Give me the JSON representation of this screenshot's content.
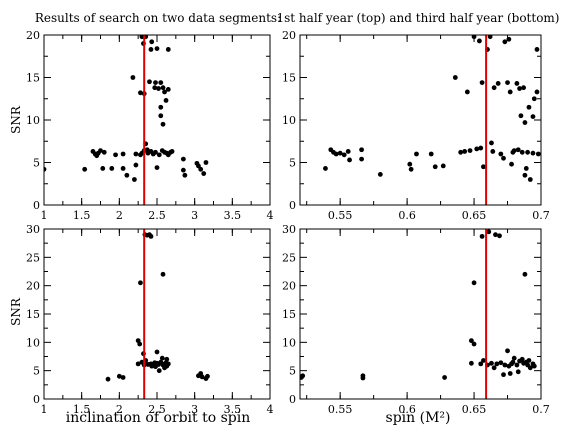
{
  "chart_data": [
    {
      "type": "scatter",
      "title": "Results of search on two data segments:",
      "xlabel": "",
      "ylabel": "SNR",
      "xlim": [
        1,
        4
      ],
      "ylim": [
        0,
        20
      ],
      "xticks": [
        "1",
        "1.5",
        "2",
        "2.5",
        "3",
        "3.5",
        "4"
      ],
      "yticks": [
        "0",
        "5",
        "10",
        "15",
        "20"
      ],
      "xtick_values": [
        1,
        1.5,
        2,
        2.5,
        3,
        3.5,
        4
      ],
      "ytick_values": [
        0,
        5,
        10,
        15,
        20
      ],
      "vline": 2.33,
      "vline_color": "#e00000",
      "points": [
        [
          1.0,
          4.2
        ],
        [
          1.54,
          4.2
        ],
        [
          1.65,
          6.3
        ],
        [
          1.68,
          6.0
        ],
        [
          1.7,
          5.8
        ],
        [
          1.72,
          6.1
        ],
        [
          1.75,
          6.4
        ],
        [
          1.78,
          4.3
        ],
        [
          1.8,
          6.2
        ],
        [
          1.9,
          4.3
        ],
        [
          1.95,
          5.9
        ],
        [
          2.05,
          6.0
        ],
        [
          2.05,
          4.3
        ],
        [
          2.1,
          3.5
        ],
        [
          2.18,
          15.0
        ],
        [
          2.2,
          3.0
        ],
        [
          2.22,
          4.7
        ],
        [
          2.22,
          6.0
        ],
        [
          2.28,
          13.2
        ],
        [
          2.28,
          5.9
        ],
        [
          2.3,
          19.8
        ],
        [
          2.3,
          6.1
        ],
        [
          2.32,
          19.0
        ],
        [
          2.33,
          13.1
        ],
        [
          2.33,
          6.4
        ],
        [
          2.35,
          19.8
        ],
        [
          2.35,
          7.2
        ],
        [
          2.37,
          6.5
        ],
        [
          2.38,
          6.1
        ],
        [
          2.4,
          14.5
        ],
        [
          2.42,
          18.3
        ],
        [
          2.42,
          6.3
        ],
        [
          2.43,
          19.2
        ],
        [
          2.45,
          6.0
        ],
        [
          2.47,
          13.8
        ],
        [
          2.48,
          14.4
        ],
        [
          2.48,
          6.2
        ],
        [
          2.5,
          18.4
        ],
        [
          2.5,
          4.4
        ],
        [
          2.52,
          13.7
        ],
        [
          2.53,
          5.9
        ],
        [
          2.55,
          14.4
        ],
        [
          2.55,
          11.5
        ],
        [
          2.55,
          10.5
        ],
        [
          2.57,
          6.4
        ],
        [
          2.58,
          13.8
        ],
        [
          2.58,
          9.5
        ],
        [
          2.6,
          6.2
        ],
        [
          2.6,
          13.3
        ],
        [
          2.62,
          12.3
        ],
        [
          2.63,
          6.1
        ],
        [
          2.65,
          18.3
        ],
        [
          2.65,
          13.6
        ],
        [
          2.65,
          5.9
        ],
        [
          2.68,
          6.2
        ],
        [
          2.7,
          6.3
        ],
        [
          2.85,
          5.4
        ],
        [
          2.85,
          4.1
        ],
        [
          2.87,
          3.5
        ],
        [
          3.03,
          4.9
        ],
        [
          3.05,
          4.6
        ],
        [
          3.08,
          4.2
        ],
        [
          3.12,
          3.7
        ],
        [
          3.15,
          5.0
        ]
      ]
    },
    {
      "type": "scatter",
      "title": "1st half year (top) and third half year (bottom)",
      "xlabel": "",
      "ylabel": "",
      "xlim": [
        0.52,
        0.7
      ],
      "ylim": [
        0,
        20
      ],
      "xticks": [
        "0.55",
        "0.6",
        "0.65",
        "0.7"
      ],
      "yticks": [
        "0",
        "5",
        "10",
        "15",
        "20"
      ],
      "xtick_values": [
        0.55,
        0.6,
        0.65,
        0.7
      ],
      "ytick_values": [
        0,
        5,
        10,
        15,
        20
      ],
      "vline": 0.659,
      "vline_color": "#e00000",
      "points": [
        [
          0.539,
          4.3
        ],
        [
          0.543,
          6.5
        ],
        [
          0.545,
          6.2
        ],
        [
          0.547,
          6.0
        ],
        [
          0.55,
          6.1
        ],
        [
          0.553,
          5.9
        ],
        [
          0.556,
          6.3
        ],
        [
          0.557,
          5.3
        ],
        [
          0.566,
          6.5
        ],
        [
          0.566,
          5.4
        ],
        [
          0.58,
          3.6
        ],
        [
          0.602,
          4.8
        ],
        [
          0.603,
          4.2
        ],
        [
          0.607,
          6.0
        ],
        [
          0.618,
          6.0
        ],
        [
          0.621,
          4.5
        ],
        [
          0.627,
          4.6
        ],
        [
          0.636,
          15.0
        ],
        [
          0.64,
          6.2
        ],
        [
          0.643,
          6.3
        ],
        [
          0.645,
          13.3
        ],
        [
          0.647,
          6.4
        ],
        [
          0.65,
          19.8
        ],
        [
          0.652,
          6.6
        ],
        [
          0.654,
          19.3
        ],
        [
          0.655,
          6.7
        ],
        [
          0.656,
          14.4
        ],
        [
          0.657,
          4.5
        ],
        [
          0.66,
          18.3
        ],
        [
          0.662,
          19.8
        ],
        [
          0.663,
          7.3
        ],
        [
          0.664,
          6.3
        ],
        [
          0.665,
          13.8
        ],
        [
          0.668,
          14.3
        ],
        [
          0.67,
          6.0
        ],
        [
          0.672,
          5.5
        ],
        [
          0.673,
          19.2
        ],
        [
          0.675,
          14.4
        ],
        [
          0.676,
          19.5
        ],
        [
          0.677,
          13.3
        ],
        [
          0.678,
          4.8
        ],
        [
          0.679,
          6.2
        ],
        [
          0.68,
          6.4
        ],
        [
          0.682,
          14.3
        ],
        [
          0.683,
          6.5
        ],
        [
          0.684,
          13.7
        ],
        [
          0.685,
          10.5
        ],
        [
          0.686,
          6.2
        ],
        [
          0.687,
          13.8
        ],
        [
          0.688,
          9.7
        ],
        [
          0.688,
          3.5
        ],
        [
          0.689,
          4.3
        ],
        [
          0.69,
          6.2
        ],
        [
          0.691,
          11.5
        ],
        [
          0.692,
          3.0
        ],
        [
          0.694,
          10.4
        ],
        [
          0.694,
          6.1
        ],
        [
          0.695,
          12.5
        ],
        [
          0.697,
          18.3
        ],
        [
          0.697,
          13.3
        ],
        [
          0.698,
          6.0
        ]
      ]
    },
    {
      "type": "scatter",
      "title": "",
      "xlabel": "inclination of orbit to spin",
      "ylabel": "SNR",
      "xlim": [
        1,
        4
      ],
      "ylim": [
        0,
        30
      ],
      "xticks": [
        "1",
        "1.5",
        "2",
        "2.5",
        "3",
        "3.5",
        "4"
      ],
      "yticks": [
        "0",
        "5",
        "10",
        "15",
        "20",
        "25",
        "30"
      ],
      "xtick_values": [
        1,
        1.5,
        2,
        2.5,
        3,
        3.5,
        4
      ],
      "ytick_values": [
        0,
        5,
        10,
        15,
        20,
        25,
        30
      ],
      "vline": 2.33,
      "vline_color": "#e00000",
      "points": [
        [
          1.85,
          3.5
        ],
        [
          2.0,
          4.0
        ],
        [
          2.05,
          3.8
        ],
        [
          2.25,
          10.3
        ],
        [
          2.27,
          9.7
        ],
        [
          2.25,
          6.2
        ],
        [
          2.28,
          20.5
        ],
        [
          2.3,
          6.5
        ],
        [
          2.32,
          8.0
        ],
        [
          2.33,
          6.0
        ],
        [
          2.34,
          29.0
        ],
        [
          2.35,
          6.8
        ],
        [
          2.37,
          28.9
        ],
        [
          2.38,
          6.1
        ],
        [
          2.4,
          29.0
        ],
        [
          2.42,
          28.7
        ],
        [
          2.42,
          6.2
        ],
        [
          2.43,
          5.8
        ],
        [
          2.45,
          6.0
        ],
        [
          2.47,
          6.4
        ],
        [
          2.48,
          5.7
        ],
        [
          2.5,
          6.3
        ],
        [
          2.5,
          8.3
        ],
        [
          2.52,
          6.1
        ],
        [
          2.53,
          5.0
        ],
        [
          2.55,
          6.5
        ],
        [
          2.57,
          7.2
        ],
        [
          2.58,
          6.0
        ],
        [
          2.58,
          22.0
        ],
        [
          2.6,
          6.2
        ],
        [
          2.6,
          5.5
        ],
        [
          2.62,
          6.4
        ],
        [
          2.63,
          5.8
        ],
        [
          2.63,
          7.0
        ],
        [
          2.65,
          6.2
        ],
        [
          3.05,
          4.1
        ],
        [
          3.08,
          4.5
        ],
        [
          3.1,
          3.9
        ],
        [
          3.15,
          3.6
        ],
        [
          3.17,
          4.0
        ]
      ]
    },
    {
      "type": "scatter",
      "title": "",
      "xlabel": "spin (M²)",
      "ylabel": "",
      "xlim": [
        0.52,
        0.7
      ],
      "ylim": [
        0,
        30
      ],
      "xticks": [
        "0.55",
        "0.6",
        "0.65",
        "0.7"
      ],
      "yticks": [
        "0",
        "5",
        "10",
        "15",
        "20",
        "25",
        "30"
      ],
      "xtick_values": [
        0.55,
        0.6,
        0.65,
        0.7
      ],
      "ytick_values": [
        0,
        5,
        10,
        15,
        20,
        25,
        30
      ],
      "vline": 0.659,
      "vline_color": "#e00000",
      "points": [
        [
          0.521,
          3.8
        ],
        [
          0.522,
          4.1
        ],
        [
          0.567,
          3.7
        ],
        [
          0.567,
          4.1
        ],
        [
          0.628,
          3.8
        ],
        [
          0.648,
          6.3
        ],
        [
          0.648,
          10.3
        ],
        [
          0.65,
          20.5
        ],
        [
          0.65,
          9.7
        ],
        [
          0.655,
          6.2
        ],
        [
          0.656,
          28.7
        ],
        [
          0.657,
          6.8
        ],
        [
          0.66,
          6.0
        ],
        [
          0.661,
          29.5
        ],
        [
          0.663,
          6.3
        ],
        [
          0.665,
          5.5
        ],
        [
          0.666,
          29.0
        ],
        [
          0.667,
          6.2
        ],
        [
          0.669,
          28.8
        ],
        [
          0.67,
          6.4
        ],
        [
          0.672,
          4.3
        ],
        [
          0.673,
          6.0
        ],
        [
          0.675,
          8.5
        ],
        [
          0.676,
          5.8
        ],
        [
          0.677,
          4.5
        ],
        [
          0.678,
          6.2
        ],
        [
          0.679,
          6.5
        ],
        [
          0.68,
          7.2
        ],
        [
          0.682,
          6.0
        ],
        [
          0.683,
          4.8
        ],
        [
          0.684,
          6.7
        ],
        [
          0.686,
          7.0
        ],
        [
          0.687,
          6.3
        ],
        [
          0.688,
          22.0
        ],
        [
          0.689,
          6.5
        ],
        [
          0.69,
          6.0
        ],
        [
          0.691,
          6.8
        ],
        [
          0.692,
          5.5
        ],
        [
          0.694,
          6.2
        ],
        [
          0.695,
          5.8
        ]
      ]
    }
  ]
}
